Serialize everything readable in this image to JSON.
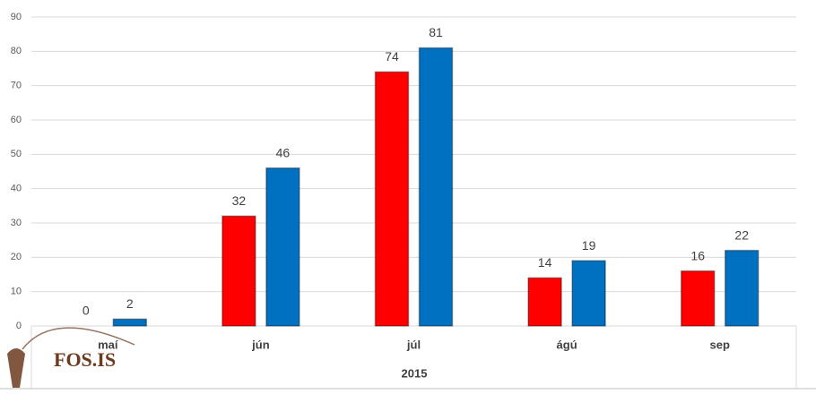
{
  "chart_data": {
    "type": "bar",
    "categories": [
      "maí",
      "jún",
      "júl",
      "ágú",
      "sep"
    ],
    "series": [
      {
        "color": "#ff0000",
        "values": [
          0,
          32,
          74,
          14,
          16
        ]
      },
      {
        "color": "#0070c0",
        "values": [
          2,
          46,
          81,
          19,
          22
        ]
      }
    ],
    "x_label": "2015",
    "watermark": "FOS.IS",
    "ylim": [
      0,
      90
    ],
    "yticks": [
      0,
      10,
      20,
      30,
      40,
      50,
      60,
      70,
      80,
      90
    ],
    "grid": true
  }
}
